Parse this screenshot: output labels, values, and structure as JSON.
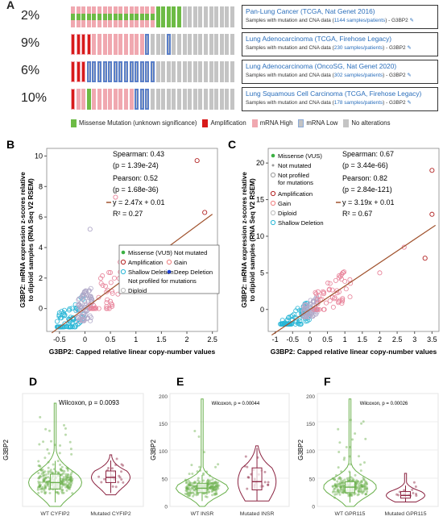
{
  "panel_labels": {
    "a": "A",
    "b": "B",
    "c": "C",
    "d": "D",
    "e": "E",
    "f": "F"
  },
  "oncoprint": {
    "studies": [
      {
        "percent": "2%",
        "title": "Pan-Lung Cancer (TCGA, Nat Genet 2016)",
        "sub_prefix": "Samples with mutation and CNA data (",
        "count": "1144 samples/patients",
        "sub_suffix": ") - G3BP2",
        "cells": [
          "M",
          "M",
          "M",
          "M",
          "M",
          "M",
          "M",
          "M",
          "M",
          "M",
          "M",
          "M",
          "M",
          "M",
          "M",
          "M",
          "m",
          "m",
          "m",
          "m",
          "m",
          "n",
          "n",
          "n",
          "n",
          "n",
          "n",
          "n",
          "n",
          "n",
          "n"
        ]
      },
      {
        "percent": "9%",
        "title": "Lung Adenocarcinoma (TCGA, Firehose Legacy)",
        "sub_prefix": "Samples with mutation and CNA data (",
        "count": "230 samples/patients",
        "sub_suffix": ") - G3BP2",
        "cells": [
          "A",
          "A",
          "A",
          "A",
          "H",
          "H",
          "H",
          "H",
          "H",
          "H",
          "H",
          "H",
          "H",
          "H",
          "L",
          "n",
          "n",
          "n",
          "L",
          "n",
          "n",
          "n",
          "n",
          "n",
          "n",
          "n",
          "n",
          "n",
          "n",
          "n",
          "n"
        ]
      },
      {
        "percent": "6%",
        "title": "Lung Adenocarcinoma (OncoSG, Nat Genet 2020)",
        "sub_prefix": "Samples with mutation and CNA data (",
        "count": "302 samples/patients",
        "sub_suffix": ") - G3BP2",
        "cells": [
          "A",
          "A",
          "K",
          "L",
          "L",
          "L",
          "L",
          "L",
          "L",
          "L",
          "L",
          "L",
          "L",
          "L",
          "L",
          "L",
          "n",
          "n",
          "n",
          "n",
          "n",
          "n",
          "n",
          "n",
          "n",
          "n",
          "n",
          "n",
          "n",
          "n",
          "n"
        ]
      },
      {
        "percent": "10%",
        "title": "Lung Squamous Cell Carcinoma (TCGA, Firehose Legacy)",
        "sub_prefix": "Samples with mutation and CNA data (",
        "count": "178 samples/patients",
        "sub_suffix": ") - G3BP2",
        "cells": [
          "A",
          "H",
          "H",
          "m",
          "H",
          "H",
          "H",
          "H",
          "H",
          "H",
          "H",
          "H",
          "L",
          "L",
          "L",
          "n",
          "n",
          "n",
          "n",
          "n",
          "n",
          "n",
          "n",
          "n",
          "n",
          "n",
          "n",
          "n",
          "n",
          "n",
          "n"
        ]
      }
    ],
    "legend": [
      {
        "label": "Missense Mutation (unknown significance)",
        "color": "#6dbb45"
      },
      {
        "label": "Amplification",
        "color": "#d81b1b"
      },
      {
        "label": "mRNA High",
        "color": "#f0a8b0"
      },
      {
        "label": "mRNA Low",
        "color": "#8aaad8"
      },
      {
        "label": "No alterations",
        "color": "#c4c4c4"
      }
    ]
  },
  "chart_data": [
    {
      "type": "scatter",
      "panel": "B",
      "xlabel": "G3BP2: Capped relative linear copy-number values",
      "ylabel": "G3BP2: mRNA expression z-scores relative to diploid samples (RNA Seq V2 RSEM)",
      "xticks": [
        "-0.5",
        "0",
        "0.5",
        "1",
        "1.5",
        "2",
        "2.5"
      ],
      "yticks": [
        "0",
        "2",
        "4",
        "6",
        "8",
        "10"
      ],
      "xlim": [
        -0.75,
        2.6
      ],
      "ylim": [
        -1.5,
        10.5
      ],
      "stats": {
        "spearman": "Spearman: 0.43",
        "spearman_p": "(p = 1.39e-24)",
        "pearson": "Pearson: 0.52",
        "pearson_p": "(p = 1.68e-36)",
        "equation": "y = 2.47x + 0.01",
        "r2": "R² = 0.27"
      },
      "fit": {
        "slope": 2.47,
        "intercept": 0.01
      },
      "legend": [
        {
          "label": "Missense (VUS)",
          "color": "#3cb043",
          "style": "fill"
        },
        {
          "label": "Not mutated",
          "color": "#999999",
          "style": "dot"
        },
        {
          "label": "Amplification",
          "color": "#b22222",
          "style": "open"
        },
        {
          "label": "Gain",
          "color": "#f08080",
          "style": "open"
        },
        {
          "label": "Shallow Deletion",
          "color": "#29b6d6",
          "style": "open"
        },
        {
          "label": "Deep Deletion",
          "color": "#1a3fd6",
          "style": "fill"
        },
        {
          "label": "Not profiled for mutations",
          "color": "#999999",
          "style": "none"
        },
        {
          "label": "Diploid",
          "color": "#bbbbbb",
          "style": "open"
        }
      ],
      "clusters": [
        {
          "group": "shallow",
          "color": "#29b6d6",
          "x": [
            -0.55,
            0.0
          ],
          "y": [
            -1.2,
            2.0
          ],
          "n": 70
        },
        {
          "group": "diploid",
          "color": "#b0a8c8",
          "x": [
            -0.15,
            0.15
          ],
          "y": [
            -0.8,
            3.0
          ],
          "n": 80
        },
        {
          "group": "gain",
          "color": "#e8839a",
          "x": [
            0.1,
            0.8
          ],
          "y": [
            0.0,
            4.5
          ],
          "n": 45
        }
      ],
      "outliers": [
        {
          "x": 2.2,
          "y": 9.7,
          "color": "#b22222"
        },
        {
          "x": 2.35,
          "y": 6.3,
          "color": "#b22222"
        },
        {
          "x": 2.15,
          "y": 3.0,
          "color": "#b22222"
        },
        {
          "x": 0.6,
          "y": 7.3,
          "color": "#e8839a"
        },
        {
          "x": 0.1,
          "y": 5.2,
          "color": "#b0a8c8"
        }
      ]
    },
    {
      "type": "scatter",
      "panel": "C",
      "xlabel": "G3BP2: Capped relative linear copy-number values",
      "ylabel": "G3BP2: mRNA expression z-scores relative to diploid samples (RNA Seq V2 RSEM)",
      "xticks": [
        "-1",
        "-0.5",
        "0",
        "0.5",
        "1",
        "1.5",
        "2",
        "2.5",
        "3",
        "3.5"
      ],
      "yticks": [
        "0",
        "5",
        "10",
        "15",
        "20"
      ],
      "xlim": [
        -1.2,
        3.7
      ],
      "ylim": [
        -3,
        22
      ],
      "stats": {
        "spearman": "Spearman: 0.67",
        "spearman_p": "(p = 3.44e-66)",
        "pearson": "Pearson: 0.82",
        "pearson_p": "(p = 2.84e-121)",
        "equation": "y = 3.19x + 0.01",
        "r2": "R² = 0.67"
      },
      "fit": {
        "slope": 3.19,
        "intercept": 0.01
      },
      "legend": [
        {
          "label": "Missense (VUS)",
          "color": "#3cb043",
          "style": "fill"
        },
        {
          "label": "Not mutated",
          "color": "#999999",
          "style": "dot"
        },
        {
          "label": "Not profiled for mutations",
          "color": "#999999",
          "style": "open"
        },
        {
          "label": "Amplification",
          "color": "#b22222",
          "style": "open"
        },
        {
          "label": "Gain",
          "color": "#f08080",
          "style": "open"
        },
        {
          "label": "Diploid",
          "color": "#bbbbbb",
          "style": "open"
        },
        {
          "label": "Shallow Deletion",
          "color": "#29b6d6",
          "style": "open"
        }
      ],
      "clusters": [
        {
          "group": "shallow",
          "color": "#29b6d6",
          "x": [
            -0.9,
            0.0
          ],
          "y": [
            -2.0,
            2.5
          ],
          "n": 80
        },
        {
          "group": "diploid",
          "color": "#b0a8c8",
          "x": [
            -0.2,
            0.2
          ],
          "y": [
            -1.0,
            3.0
          ],
          "n": 60
        },
        {
          "group": "gain",
          "color": "#e8839a",
          "x": [
            0.1,
            1.2
          ],
          "y": [
            0.0,
            7.0
          ],
          "n": 55
        }
      ],
      "outliers": [
        {
          "x": 3.5,
          "y": 19.0,
          "color": "#b22222"
        },
        {
          "x": 3.5,
          "y": 13.0,
          "color": "#b22222"
        },
        {
          "x": 3.3,
          "y": 7.0,
          "color": "#b22222"
        },
        {
          "x": 2.7,
          "y": 8.5,
          "color": "#e8839a"
        },
        {
          "x": 2.0,
          "y": 5.0,
          "color": "#e8839a"
        }
      ]
    },
    {
      "type": "violin",
      "panel": "D",
      "ylabel": "G3BP2",
      "annotation": "Wilcoxon, p = 0.0093",
      "ylim": [
        0,
        175
      ],
      "yticks": [],
      "categories": [
        "WT CYFIP2",
        "Mutated CYFIP2"
      ],
      "groups": [
        {
          "name": "WT CYFIP2",
          "color": "#6ab04c",
          "median": 37,
          "q1": 27,
          "q3": 50,
          "min": 0,
          "max": 160,
          "n": 260
        },
        {
          "name": "Mutated CYFIP2",
          "color": "#8b2341",
          "median": 45,
          "q1": 37,
          "q3": 55,
          "min": 18,
          "max": 80,
          "n": 25
        }
      ]
    },
    {
      "type": "violin",
      "panel": "E",
      "ylabel": "G3BP2",
      "annotation": "Wilcoxon, p = 0.00044",
      "ylim": [
        0,
        205
      ],
      "yticks": [
        "0",
        "50",
        "100",
        "150",
        "200"
      ],
      "categories": [
        "WT INSR",
        "Mutated INSR"
      ],
      "groups": [
        {
          "name": "WT INSR",
          "color": "#6ab04c",
          "median": 33,
          "q1": 25,
          "q3": 42,
          "min": 0,
          "max": 195,
          "n": 230
        },
        {
          "name": "Mutated INSR",
          "color": "#8b2341",
          "median": 45,
          "q1": 30,
          "q3": 70,
          "min": 10,
          "max": 110,
          "n": 25
        }
      ]
    },
    {
      "type": "violin",
      "panel": "F",
      "ylabel": "G3BP2",
      "annotation": "Wilcoxon, p = 0.00026",
      "ylim": [
        0,
        205
      ],
      "yticks": [
        "0",
        "50",
        "100",
        "150",
        "200"
      ],
      "categories": [
        "WT GPR115",
        "Mutated GPR115"
      ],
      "groups": [
        {
          "name": "WT GPR115",
          "color": "#6ab04c",
          "median": 35,
          "q1": 25,
          "q3": 45,
          "min": 0,
          "max": 195,
          "n": 230
        },
        {
          "name": "Mutated GPR115",
          "color": "#8b2341",
          "median": 20,
          "q1": 15,
          "q3": 27,
          "min": 8,
          "max": 60,
          "n": 15
        }
      ]
    }
  ]
}
